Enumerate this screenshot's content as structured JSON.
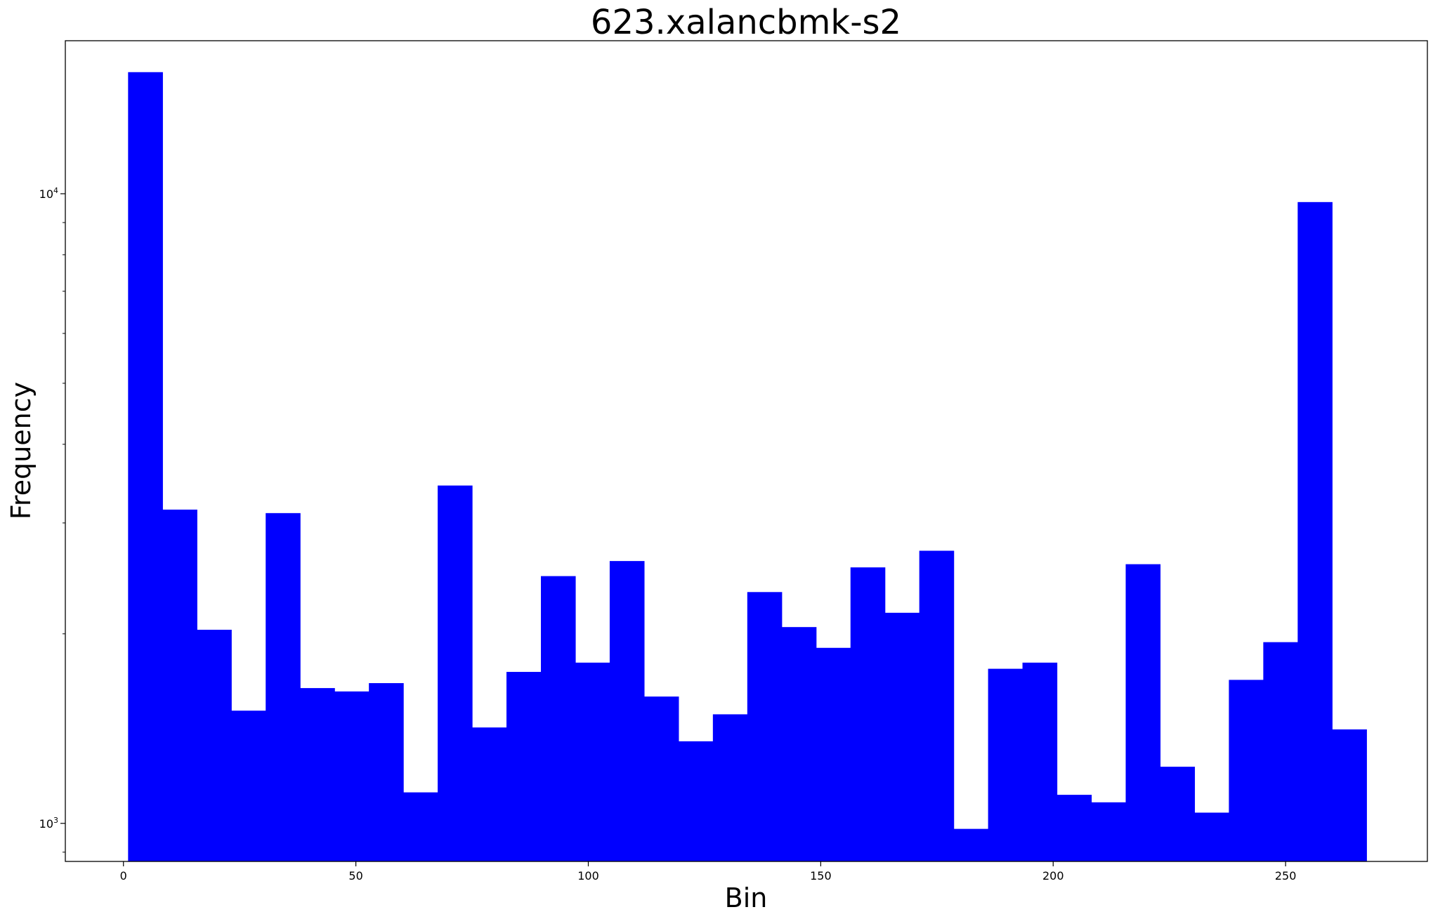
{
  "chart_data": {
    "type": "bar",
    "title": "623.xalancbmk-s2",
    "xlabel": "Bin",
    "ylabel": "Frequency",
    "y_scale": "log",
    "xlim": [
      -12.5,
      280.5
    ],
    "ylim": [
      870,
      17500
    ],
    "bar_color": "#0000ff",
    "x_ticks": [
      0,
      50,
      100,
      150,
      200,
      250
    ],
    "y_ticks": [
      {
        "value": 1000,
        "base": "10",
        "exp": "3"
      },
      {
        "value": 10000,
        "base": "10",
        "exp": "4"
      }
    ],
    "bins": [
      {
        "x0": 1,
        "x1": 8.4,
        "value": 15600
      },
      {
        "x0": 8.4,
        "x1": 15.8,
        "value": 3150
      },
      {
        "x0": 15.8,
        "x1": 23.2,
        "value": 2030
      },
      {
        "x0": 23.2,
        "x1": 30.6,
        "value": 1510
      },
      {
        "x0": 30.6,
        "x1": 38.0,
        "value": 3110
      },
      {
        "x0": 38.0,
        "x1": 45.4,
        "value": 1640
      },
      {
        "x0": 45.4,
        "x1": 52.8,
        "value": 1620
      },
      {
        "x0": 52.8,
        "x1": 60.2,
        "value": 1670
      },
      {
        "x0": 60.2,
        "x1": 67.6,
        "value": 1120
      },
      {
        "x0": 67.6,
        "x1": 75.0,
        "value": 3440
      },
      {
        "x0": 75.0,
        "x1": 82.4,
        "value": 1420
      },
      {
        "x0": 82.4,
        "x1": 89.8,
        "value": 1740
      },
      {
        "x0": 89.8,
        "x1": 97.2,
        "value": 2470
      },
      {
        "x0": 97.2,
        "x1": 104.6,
        "value": 1800
      },
      {
        "x0": 104.6,
        "x1": 112.0,
        "value": 2610
      },
      {
        "x0": 112.0,
        "x1": 119.4,
        "value": 1590
      },
      {
        "x0": 119.4,
        "x1": 126.8,
        "value": 1350
      },
      {
        "x0": 126.8,
        "x1": 134.2,
        "value": 1490
      },
      {
        "x0": 134.2,
        "x1": 141.6,
        "value": 2330
      },
      {
        "x0": 141.6,
        "x1": 149.0,
        "value": 2050
      },
      {
        "x0": 149.0,
        "x1": 156.4,
        "value": 1900
      },
      {
        "x0": 156.4,
        "x1": 163.8,
        "value": 2550
      },
      {
        "x0": 163.8,
        "x1": 171.2,
        "value": 2160
      },
      {
        "x0": 171.2,
        "x1": 178.6,
        "value": 2710
      },
      {
        "x0": 178.6,
        "x1": 186.0,
        "value": 980
      },
      {
        "x0": 186.0,
        "x1": 193.4,
        "value": 1760
      },
      {
        "x0": 193.4,
        "x1": 200.8,
        "value": 1800
      },
      {
        "x0": 200.8,
        "x1": 208.2,
        "value": 1110
      },
      {
        "x0": 208.2,
        "x1": 215.6,
        "value": 1080
      },
      {
        "x0": 215.6,
        "x1": 223.0,
        "value": 2580
      },
      {
        "x0": 223.0,
        "x1": 230.4,
        "value": 1230
      },
      {
        "x0": 230.4,
        "x1": 237.8,
        "value": 1040
      },
      {
        "x0": 237.8,
        "x1": 245.2,
        "value": 1690
      },
      {
        "x0": 245.2,
        "x1": 252.6,
        "value": 1940
      },
      {
        "x0": 252.6,
        "x1": 260.0,
        "value": 9700
      },
      {
        "x0": 260.0,
        "x1": 267.4,
        "value": 1410
      }
    ]
  }
}
